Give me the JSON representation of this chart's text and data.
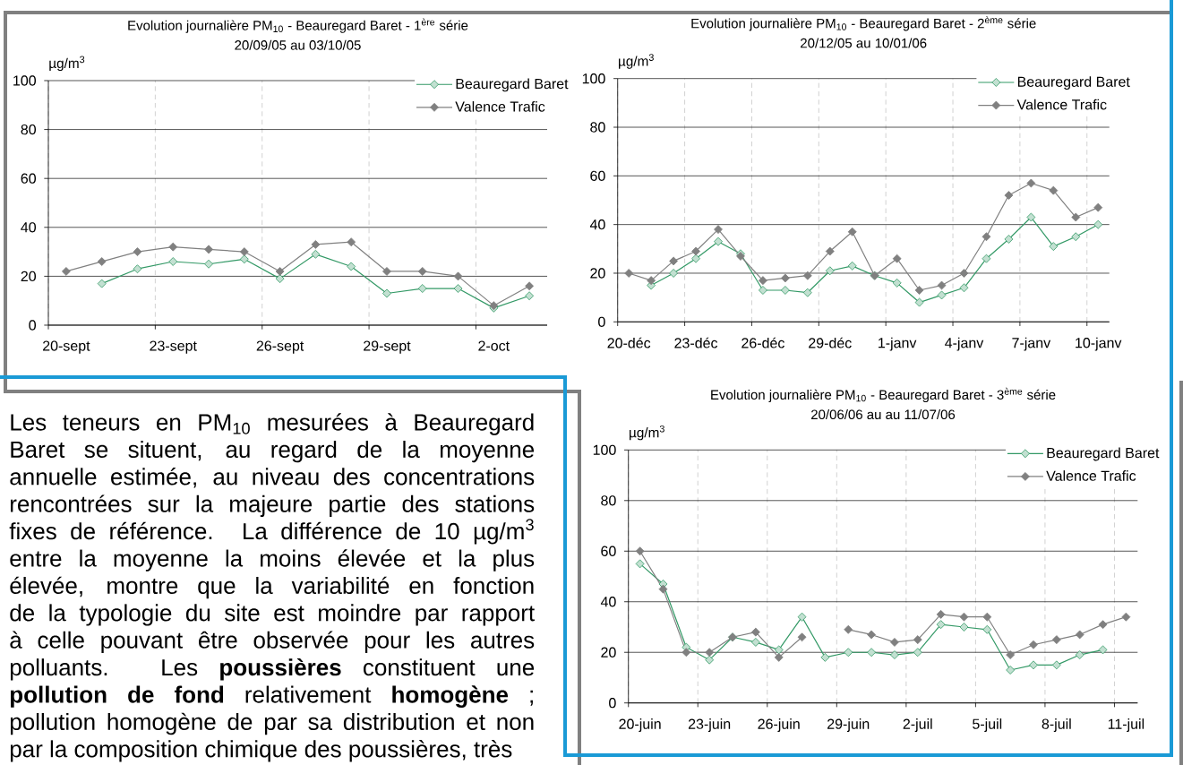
{
  "chart_data": [
    {
      "type": "line",
      "title": "Evolution journalière PM$_{10}$ - Beauregard Baret - 1$^{ère}$ série",
      "subtitle": "20/09/05 au 03/10/05",
      "ylabel": "µg/m$^{3}$",
      "categories": [
        "20-sept",
        null,
        null,
        "23-sept",
        null,
        null,
        "26-sept",
        null,
        null,
        "29-sept",
        null,
        null,
        "2-oct",
        null
      ],
      "series": [
        {
          "name": "Beauregard Baret",
          "color": "#339966",
          "values": [
            null,
            17,
            23,
            26,
            25,
            27,
            19,
            29,
            24,
            13,
            15,
            15,
            7,
            12
          ]
        },
        {
          "name": "Valence Trafic",
          "color": "#808080",
          "values": [
            22,
            26,
            30,
            32,
            31,
            30,
            22,
            33,
            34,
            22,
            22,
            20,
            8,
            16
          ]
        }
      ],
      "ylim": [
        0,
        100
      ],
      "yticks": [
        0,
        20,
        40,
        60,
        80,
        100
      ],
      "grid": true,
      "legend": "top right",
      "marker": "diamond"
    },
    {
      "type": "line",
      "title": "Evolution journalière PM$_{10}$ - Beauregard Baret - 2$^{ème}$ série",
      "subtitle": "20/12/05 au 10/01/06",
      "ylabel": "µg/m$^{3}$",
      "categories": [
        "20-déc",
        null,
        null,
        "23-déc",
        null,
        null,
        "26-déc",
        null,
        null,
        "29-déc",
        null,
        null,
        "1-janv",
        null,
        null,
        "4-janv",
        null,
        null,
        "7-janv",
        null,
        null,
        "10-janv"
      ],
      "series": [
        {
          "name": "Beauregard Baret",
          "color": "#339966",
          "values": [
            null,
            15,
            20,
            26,
            33,
            28,
            13,
            13,
            12,
            21,
            23,
            19,
            16,
            8,
            11,
            14,
            26,
            34,
            43,
            31,
            35,
            40
          ]
        },
        {
          "name": "Valence Trafic",
          "color": "#808080",
          "values": [
            20,
            17,
            25,
            29,
            38,
            27,
            17,
            18,
            19,
            29,
            37,
            19,
            26,
            13,
            15,
            20,
            35,
            52,
            57,
            54,
            43,
            47
          ]
        }
      ],
      "ylim": [
        0,
        100
      ],
      "yticks": [
        0,
        20,
        40,
        60,
        80,
        100
      ],
      "grid": true,
      "legend": "top right",
      "marker": "diamond"
    },
    {
      "type": "other",
      "annotations": [
        "Les teneurs en PM$_{10}$ mesurées à Beauregard Baret se situent, au regard de la moyenne annuelle estimée, au niveau des concentrations rencontrées sur la majeure partie des stations fixes de référence. La différence de 10 µg/m$^{3}$ entre la moyenne la moins élevée et la plus élevée, montre que la variabilité en fonction de la typologie du site est moindre par rapport à celle pouvant être observée pour les autres polluants. Les **poussières** constituent une **pollution de fond** relativement **homogène** ; pollution homogène de par sa distribution et non par la composition chimique des poussières, très"
      ]
    },
    {
      "type": "line",
      "title": "Evolution journalière PM$_{10}$ - Beauregard Baret - 3$^{ème}$ série",
      "subtitle": "20/06/06 au au 11/07/06",
      "ylabel": "µg/m$^{3}$",
      "categories": [
        "20-juin",
        null,
        null,
        "23-juin",
        null,
        null,
        "26-juin",
        null,
        null,
        "29-juin",
        null,
        null,
        "2-juil",
        null,
        null,
        "5-juil",
        null,
        null,
        "8-juil",
        null,
        null,
        "11-juil"
      ],
      "series": [
        {
          "name": "Beauregard Baret",
          "color": "#339966",
          "values": [
            55,
            47,
            22,
            17,
            26,
            24,
            21,
            34,
            18,
            20,
            20,
            19,
            20,
            31,
            30,
            29,
            13,
            15,
            15,
            19,
            21,
            null
          ]
        },
        {
          "name": "Valence Trafic",
          "color": "#808080",
          "values": [
            60,
            45,
            20,
            20,
            26,
            28,
            18,
            26,
            null,
            29,
            27,
            24,
            25,
            35,
            34,
            34,
            19,
            23,
            25,
            27,
            31,
            34
          ]
        }
      ],
      "ylim": [
        0,
        100
      ],
      "yticks": [
        0,
        20,
        40,
        60,
        80,
        100
      ],
      "grid": true,
      "legend": "top right",
      "marker": "diamond"
    }
  ]
}
